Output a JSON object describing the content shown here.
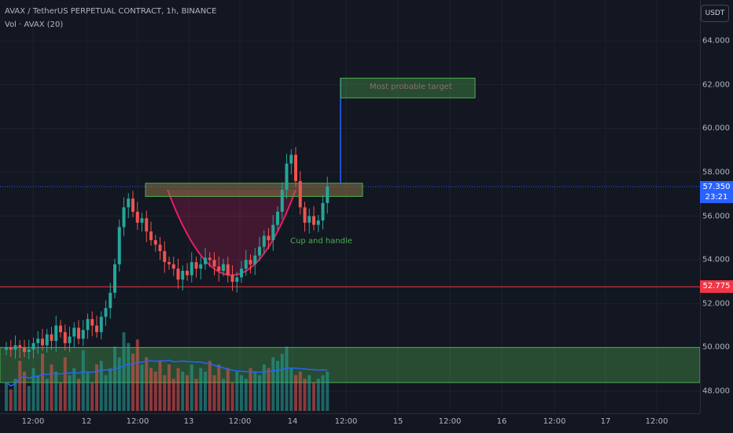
{
  "legend": {
    "title": "AVAX / TetherUS PERPETUAL CONTRACT, 1h, BINANCE",
    "volume": "Vol · AVAX (20)"
  },
  "price_axis": {
    "currency": "USDT",
    "ticks": [
      "64.000",
      "62.000",
      "60.000",
      "58.000",
      "56.000",
      "54.000",
      "52.000",
      "50.000",
      "48.000"
    ],
    "current_price": "57.350",
    "countdown": "23:21",
    "level_price": "52.775"
  },
  "time_axis": {
    "ticks": [
      "12:00",
      "12",
      "12:00",
      "13",
      "12:00",
      "14",
      "12:00",
      "15",
      "12:00",
      "16",
      "12:00",
      "17",
      "12:00"
    ]
  },
  "annotations": {
    "target": "Most probable target",
    "pattern": "Cup and  handle"
  },
  "colors": {
    "background": "#131722",
    "up": "#26a69a",
    "down": "#ef5350",
    "cup_line": "#e91e63",
    "resistance_line": "#f23645",
    "zone_green": "#4caf50",
    "current_price": "#2962ff"
  },
  "chart_data": {
    "type": "candlestick",
    "symbol": "AVAX / TetherUS PERPETUAL CONTRACT",
    "interval": "1h",
    "ylim": [
      47.5,
      65.5
    ],
    "horizontal_levels": [
      52.775
    ],
    "current_price": 57.35,
    "zones": [
      {
        "label": "Most probable target",
        "price_range": [
          61.4,
          62.3
        ]
      },
      {
        "label": "",
        "price_range": [
          56.9,
          57.5
        ]
      },
      {
        "label": "",
        "price_range": [
          48.4,
          50.0
        ]
      }
    ],
    "close": [
      50.0,
      49.9,
      50.1,
      50.0,
      49.8,
      49.9,
      50.2,
      50.4,
      50.1,
      50.6,
      50.3,
      51.0,
      50.7,
      50.2,
      50.5,
      50.9,
      50.4,
      50.8,
      51.3,
      51.0,
      50.7,
      51.4,
      51.8,
      52.5,
      53.8,
      55.5,
      56.4,
      56.8,
      56.2,
      55.7,
      55.9,
      55.3,
      54.9,
      54.7,
      54.4,
      53.9,
      53.8,
      53.6,
      53.1,
      53.5,
      53.3,
      53.9,
      53.6,
      53.8,
      54.1,
      54.0,
      53.7,
      53.5,
      53.8,
      53.3,
      53.0,
      53.2,
      53.6,
      54.0,
      53.8,
      54.2,
      54.6,
      55.1,
      54.9,
      55.6,
      56.2,
      57.2,
      58.4,
      58.8,
      57.6,
      56.4,
      55.7,
      56.0,
      55.6,
      55.8,
      56.6,
      57.35
    ],
    "volume": [
      8,
      6,
      9,
      14,
      11,
      7,
      12,
      10,
      16,
      9,
      13,
      11,
      8,
      15,
      10,
      12,
      9,
      17,
      11,
      8,
      13,
      14,
      10,
      12,
      18,
      15,
      22,
      19,
      16,
      20,
      13,
      15,
      12,
      11,
      14,
      10,
      13,
      9,
      12,
      11,
      10,
      13,
      9,
      12,
      11,
      14,
      10,
      13,
      9,
      12,
      8,
      11,
      10,
      9,
      12,
      11,
      10,
      13,
      12,
      15,
      14,
      16,
      18,
      12,
      10,
      11,
      9,
      10,
      8,
      9,
      10,
      11
    ]
  }
}
